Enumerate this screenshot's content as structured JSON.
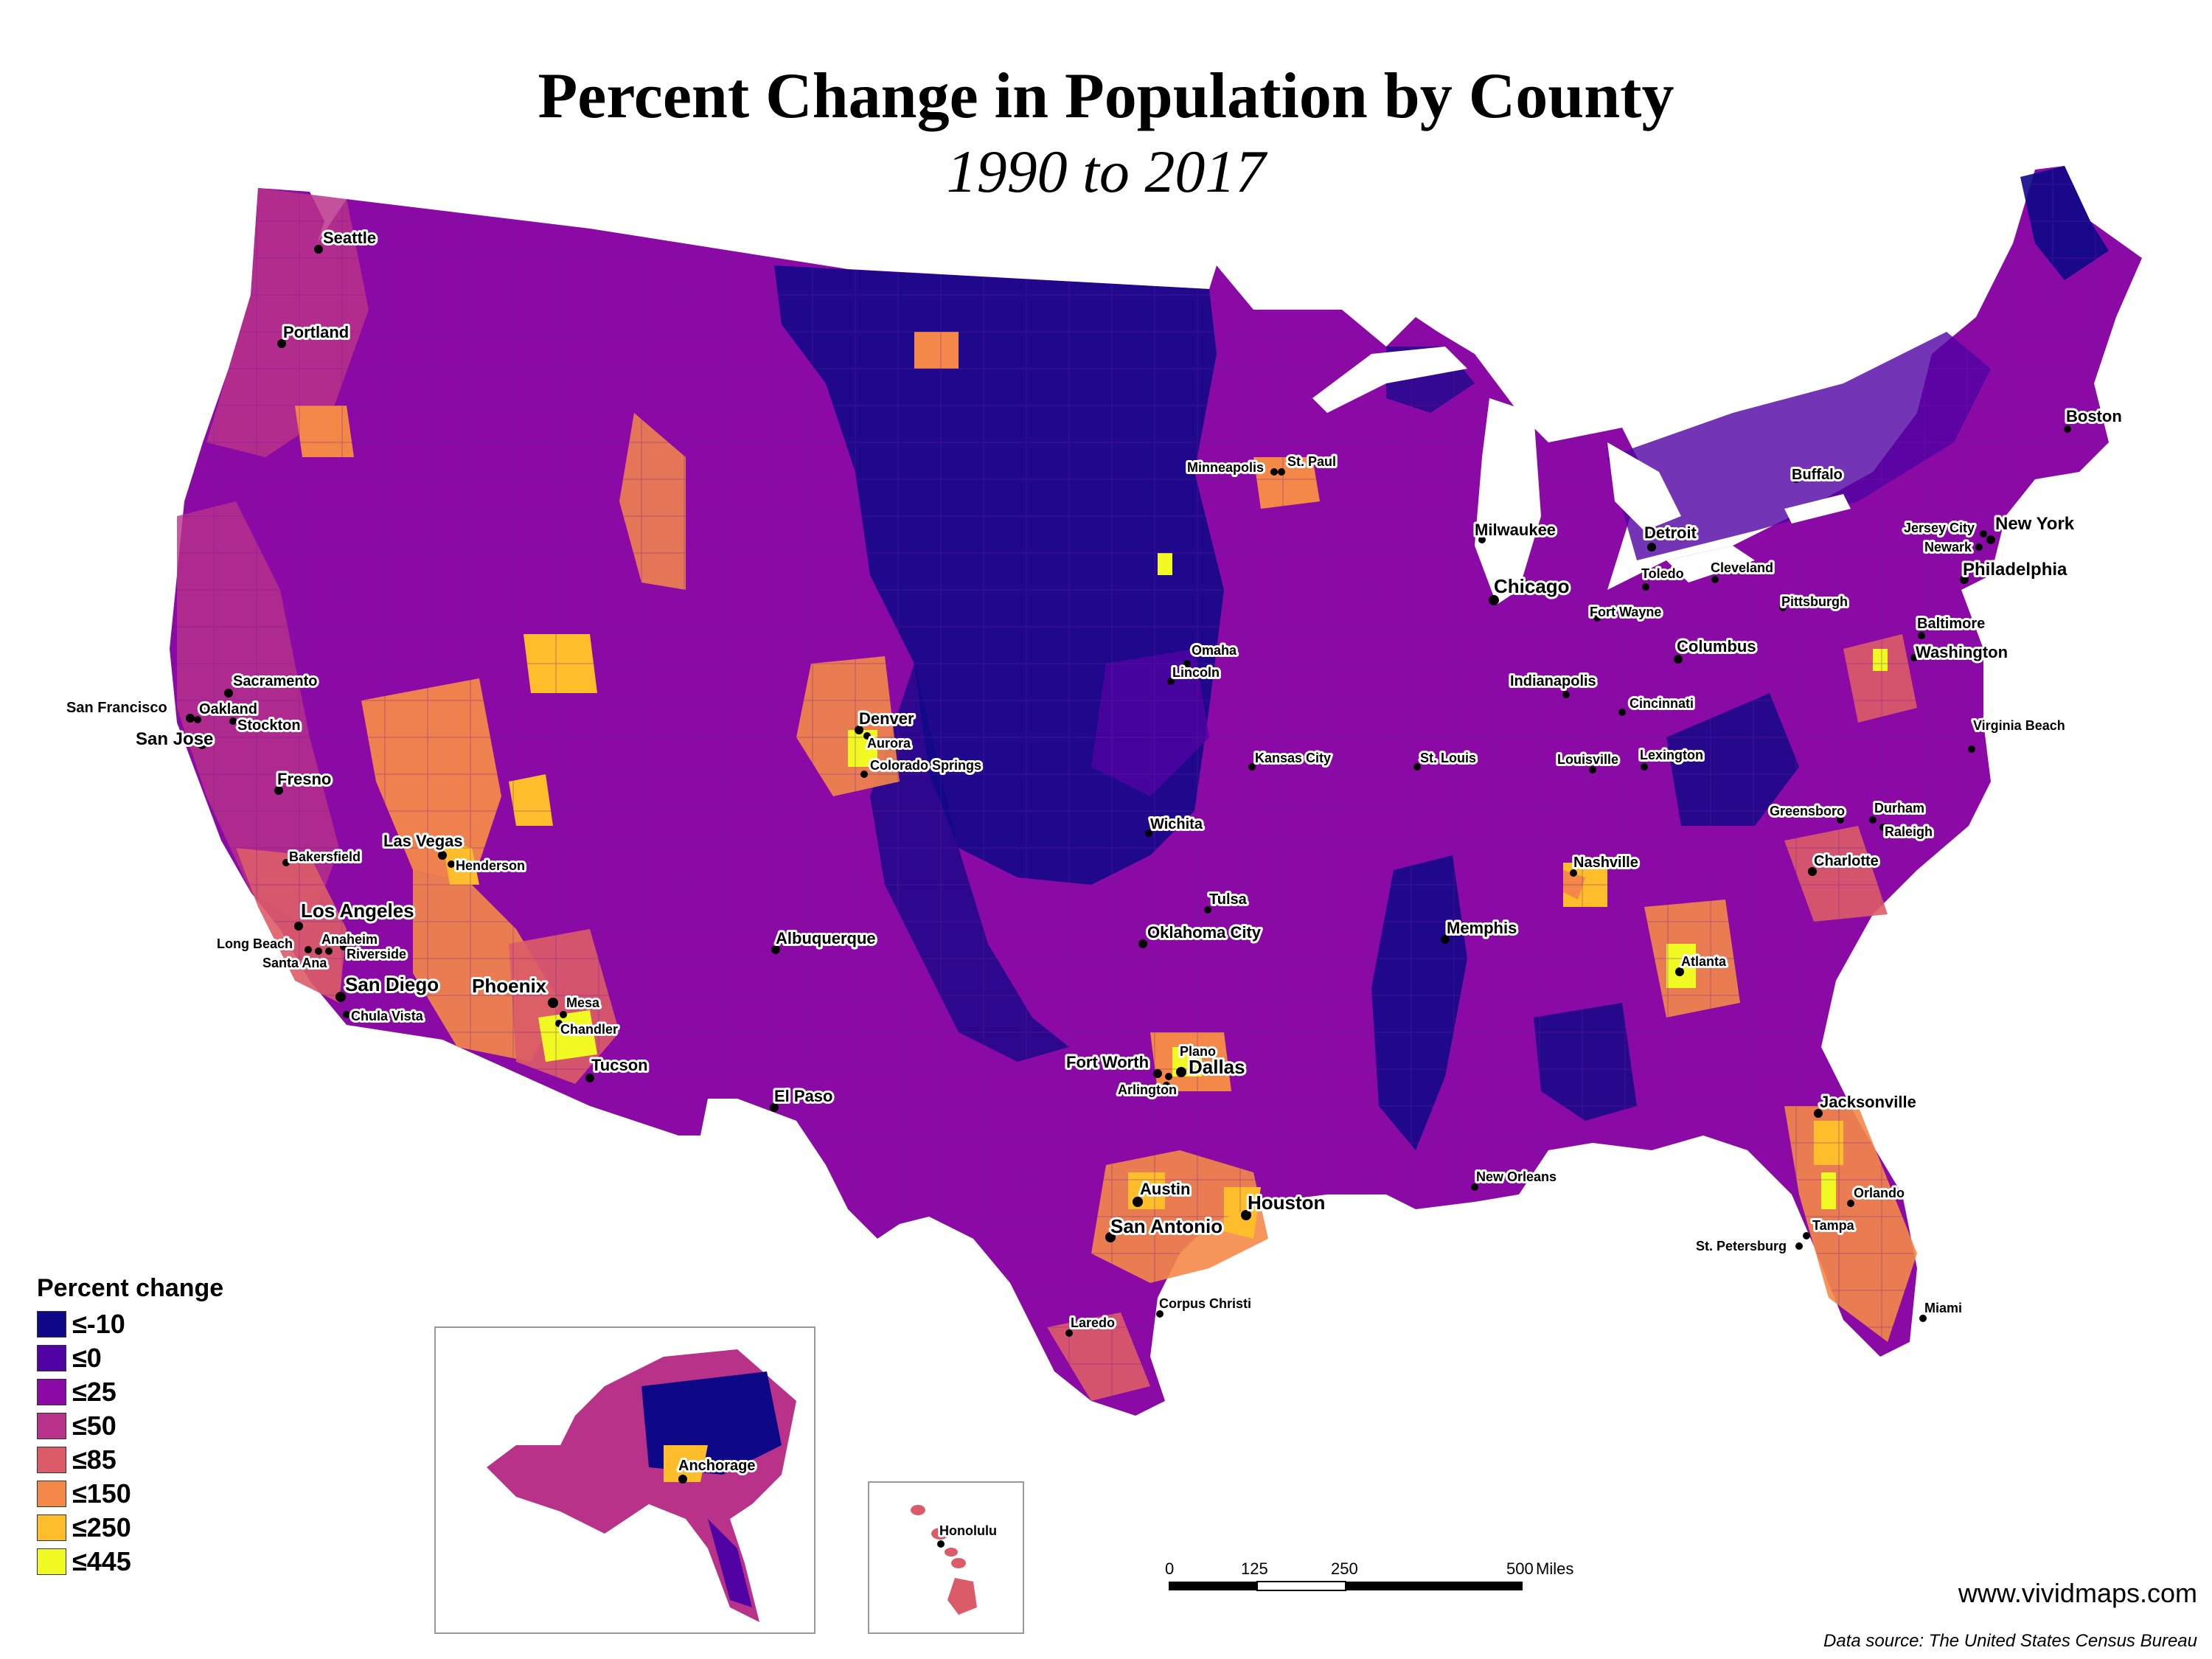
{
  "title": "Percent Change in Population by County",
  "subtitle": "1990 to 2017",
  "legend": {
    "title": "Percent change",
    "items": [
      {
        "label": "≤-10",
        "color": "#0d0887"
      },
      {
        "label": "≤0",
        "color": "#5002a3"
      },
      {
        "label": "≤25",
        "color": "#8b0aa5"
      },
      {
        "label": "≤50",
        "color": "#b83289"
      },
      {
        "label": "≤85",
        "color": "#db5c68"
      },
      {
        "label": "≤150",
        "color": "#f48849"
      },
      {
        "label": "≤250",
        "color": "#febd2a"
      },
      {
        "label": "≤445",
        "color": "#f0f921"
      }
    ]
  },
  "cities": {
    "seattle": "Seattle",
    "portland": "Portland",
    "sacramento": "Sacramento",
    "san_francisco": "San Francisco",
    "oakland": "Oakland",
    "stockton": "Stockton",
    "san_jose": "San Jose",
    "fresno": "Fresno",
    "bakersfield": "Bakersfield",
    "las_vegas": "Las Vegas",
    "henderson": "Henderson",
    "los_angeles": "Los Angeles",
    "long_beach": "Long Beach",
    "anaheim": "Anaheim",
    "riverside": "Riverside",
    "santa_ana": "Santa Ana",
    "san_diego": "San Diego",
    "chula_vista": "Chula Vista",
    "phoenix": "Phoenix",
    "mesa": "Mesa",
    "chandler": "Chandler",
    "tucson": "Tucson",
    "el_paso": "El Paso",
    "albuquerque": "Albuquerque",
    "denver": "Denver",
    "aurora": "Aurora",
    "colorado_springs": "Colorado Springs",
    "wichita": "Wichita",
    "minneapolis": "Minneapolis",
    "st_paul": "St. Paul",
    "omaha": "Omaha",
    "lincoln": "Lincoln",
    "kansas_city": "Kansas City",
    "st_louis": "St. Louis",
    "tulsa": "Tulsa",
    "oklahoma_city": "Oklahoma City",
    "fort_worth": "Fort Worth",
    "plano": "Plano",
    "dallas": "Dallas",
    "arlington": "Arlington",
    "austin": "Austin",
    "san_antonio": "San Antonio",
    "houston": "Houston",
    "corpus_christi": "Corpus Christi",
    "laredo": "Laredo",
    "new_orleans": "New Orleans",
    "memphis": "Memphis",
    "nashville": "Nashville",
    "atlanta": "Atlanta",
    "jacksonville": "Jacksonville",
    "orlando": "Orlando",
    "tampa": "Tampa",
    "st_petersburg": "St. Petersburg",
    "miami": "Miami",
    "charlotte": "Charlotte",
    "greensboro": "Greensboro",
    "durham": "Durham",
    "raleigh": "Raleigh",
    "virginia_beach": "Virginia Beach",
    "washington": "Washington",
    "baltimore": "Baltimore",
    "philadelphia": "Philadelphia",
    "new_york": "New York",
    "jersey_city": "Jersey City",
    "newark": "Newark",
    "boston": "Boston",
    "buffalo": "Buffalo",
    "pittsburgh": "Pittsburgh",
    "cleveland": "Cleveland",
    "toledo": "Toledo",
    "detroit": "Detroit",
    "fort_wayne": "Fort Wayne",
    "columbus": "Columbus",
    "cincinnati": "Cincinnati",
    "indianapolis": "Indianapolis",
    "louisville": "Louisville",
    "lexington": "Lexington",
    "chicago": "Chicago",
    "milwaukee": "Milwaukee",
    "anchorage": "Anchorage",
    "honolulu": "Honolulu"
  },
  "scale_bar": {
    "ticks": [
      "0",
      "125",
      "250",
      "500"
    ],
    "unit": "Miles"
  },
  "watermark": "www.vividmaps.com",
  "source": "Data source: The United States Census Bureau"
}
